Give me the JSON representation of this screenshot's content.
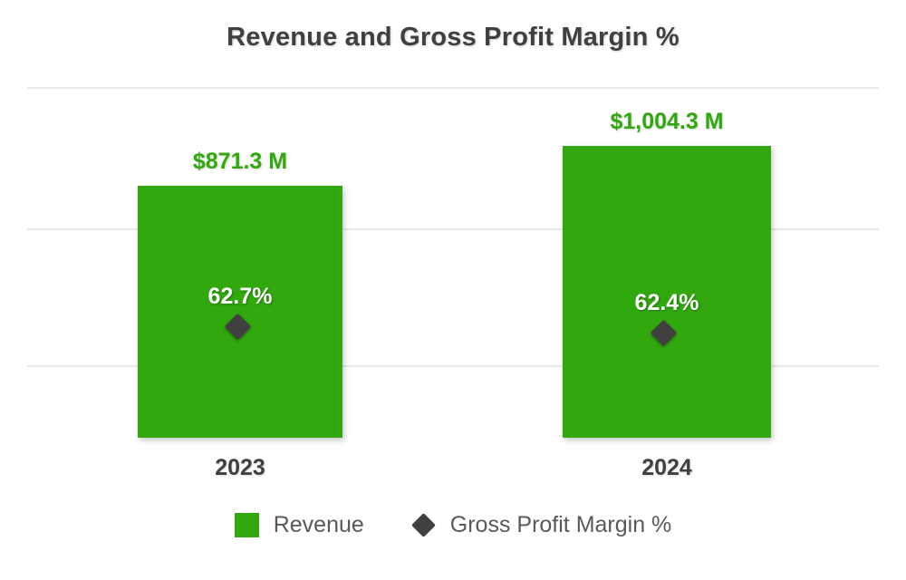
{
  "chart_data": {
    "type": "bar",
    "title": "Revenue and Gross Profit Margin %",
    "categories": [
      "2023",
      "2024"
    ],
    "series": [
      {
        "name": "Revenue",
        "type": "bar",
        "unit": "USD millions",
        "values": [
          871.3,
          1004.3
        ],
        "labels": [
          "$871.3 M",
          "$1,004.3 M"
        ],
        "color": "#30a80e"
      },
      {
        "name": "Gross Profit Margin %",
        "type": "point",
        "marker": "diamond",
        "unit": "percent",
        "values": [
          62.7,
          62.4
        ],
        "labels": [
          "62.7%",
          "62.4%"
        ],
        "color": "#404040"
      }
    ],
    "legend_position": "bottom",
    "grid": true,
    "gridlines": "3 horizontal light-gray lines",
    "background": "#ffffff",
    "value_label_color": "#30a80e",
    "text_color": "#404040",
    "legend_text_color": "#595959"
  }
}
